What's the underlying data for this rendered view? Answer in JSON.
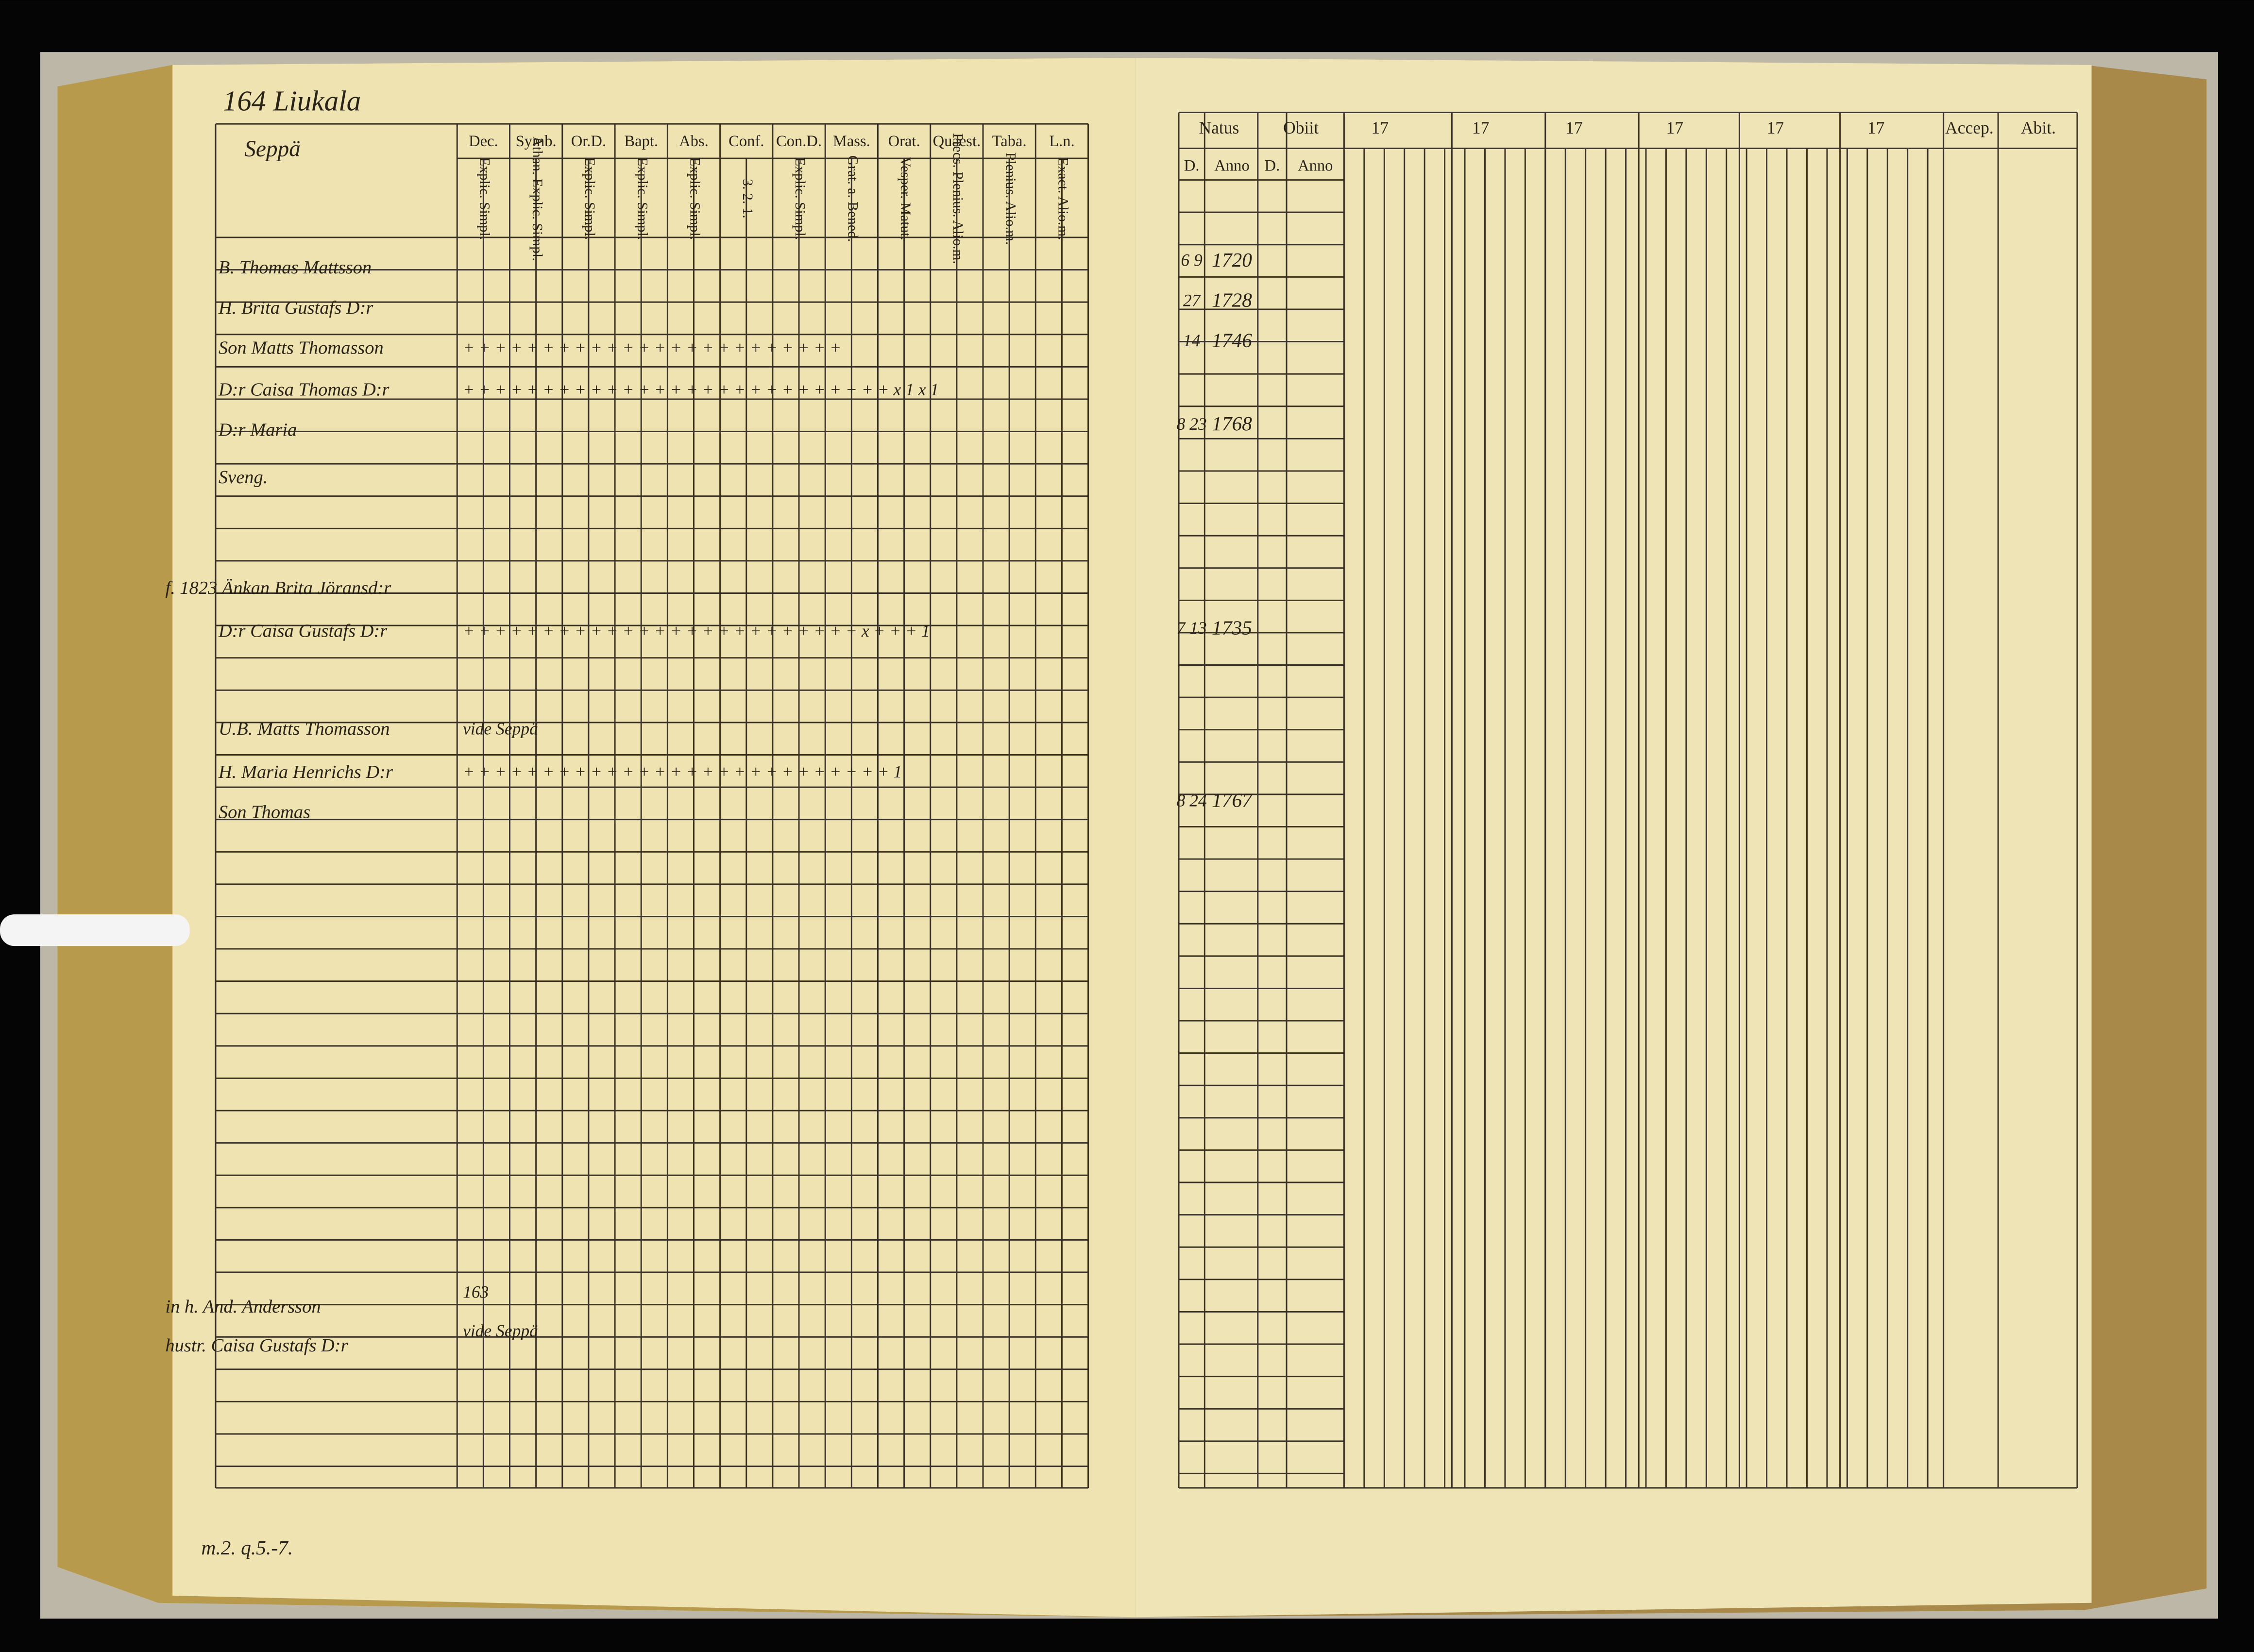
{
  "left_page": {
    "title": "164 Liukala",
    "farm": "Seppä",
    "margin_note": "m.2. q.5.-7.",
    "columns": [
      {
        "head": "Dec.",
        "sub": "Explic. Simpl."
      },
      {
        "head": "Symb.",
        "sub": "Athan. Explic. Simpl."
      },
      {
        "head": "Or.D.",
        "sub": "Explic. Simpl."
      },
      {
        "head": "Bapt.",
        "sub": "Explic. Simpl."
      },
      {
        "head": "Abs.",
        "sub": "Explic. Simpl."
      },
      {
        "head": "Conf.",
        "sub": "3. 2. 1."
      },
      {
        "head": "Con.D.",
        "sub": "Explic. Simpl."
      },
      {
        "head": "Mass.",
        "sub": "Grat. a. Bened."
      },
      {
        "head": "Orat.",
        "sub": "Vesper. Matut."
      },
      {
        "head": "Quaest.",
        "sub": "Precs. Plenius. Alio.m."
      },
      {
        "head": "Taba.",
        "sub": "Plenius. Alio.m."
      },
      {
        "head": "L.n.",
        "sub": "Exact. Alio.m."
      }
    ],
    "rows": [
      {
        "name": "B. Thomas Mattsson"
      },
      {
        "name": "H. Brita Gustafs D:r"
      },
      {
        "name": "Son Matts Thomasson",
        "marks": "+ +   + + +   + + + +   + + +   + + + +   + + + +   + +                + +"
      },
      {
        "name": "D:r Caisa Thomas D:r",
        "marks": "+ + + +   + +   + + + +   + + + + + + + + +   + + + + + + + +   x 1      x 1"
      },
      {
        "name": "D:r Maria"
      },
      {
        "name": "Sveng."
      },
      {
        "name": "f. 1823 Änkan Brita Jöransd:r"
      },
      {
        "name": "D:r Caisa Gustafs D:r",
        "marks": "+ +   + + +   + + + + + +   + + + +   + + + + + + + + + + x   + +   + 1"
      },
      {
        "name": "U.B. Matts Thomasson",
        "marks": "vide Seppä"
      },
      {
        "name": "H. Maria Henrichs D:r",
        "marks": "+ +   + + + +   + + + + + +   + + + +   + + + + + + + + +   +   + 1"
      },
      {
        "name": "Son Thomas"
      },
      {
        "name": "in h. And. Andersson",
        "marks": "163"
      },
      {
        "name": "hustr. Caisa Gustafs D:r",
        "marks": "vide Seppä"
      }
    ]
  },
  "right_page": {
    "headers": [
      "Natus",
      "Obiit",
      "17",
      "17",
      "17",
      "17",
      "17",
      "17",
      "Accep.",
      "Abit."
    ],
    "sub": [
      "D.",
      "Anno",
      "D.",
      "Anno"
    ],
    "dates": [
      {
        "day": "6 9",
        "year": "1720"
      },
      {
        "day": "27",
        "year": "1728"
      },
      {
        "day": "14",
        "year": "1746"
      },
      {
        "day": "8 23",
        "year": "1768"
      },
      {
        "day": "7 13",
        "year": "1735"
      },
      {
        "day": "8 24",
        "year": "1767"
      }
    ]
  }
}
